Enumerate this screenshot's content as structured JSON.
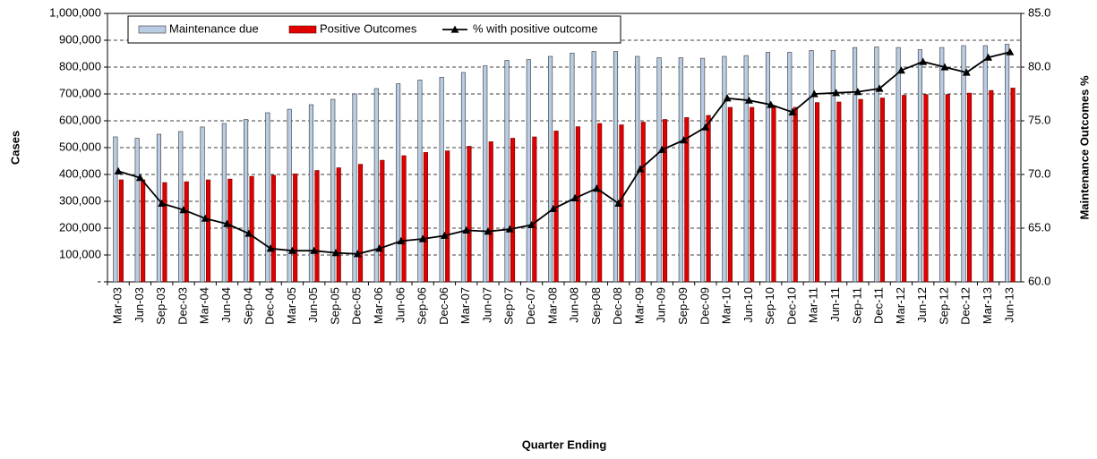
{
  "chart_data": {
    "type": "bar-line",
    "y_label": "Cases",
    "y2_label": "Maintenance Outcomes %",
    "x_label": "Quarter Ending",
    "categories": [
      "Mar-03",
      "Jun-03",
      "Sep-03",
      "Dec-03",
      "Mar-04",
      "Jun-04",
      "Sep-04",
      "Dec-04",
      "Mar-05",
      "Jun-05",
      "Sep-05",
      "Dec-05",
      "Mar-06",
      "Jun-06",
      "Sep-06",
      "Dec-06",
      "Mar-07",
      "Jun-07",
      "Sep-07",
      "Dec-07",
      "Mar-08",
      "Jun-08",
      "Sep-08",
      "Dec-08",
      "Mar-09",
      "Jun-09",
      "Sep-09",
      "Dec-09",
      "Mar-10",
      "Jun-10",
      "Sep-10",
      "Dec-10",
      "Mar-11",
      "Jun-11",
      "Sep-11",
      "Dec-11",
      "Mar-12",
      "Jun-12",
      "Sep-12",
      "Dec-12",
      "Mar-13",
      "Jun-13"
    ],
    "series": [
      {
        "name": "Maintenance due",
        "type": "bar",
        "color": "#b8cce4",
        "values": [
          540000,
          535000,
          550000,
          560000,
          577000,
          590000,
          605000,
          630000,
          643000,
          660000,
          680000,
          700000,
          720000,
          738000,
          752000,
          762000,
          780000,
          805000,
          825000,
          828000,
          840000,
          852000,
          858000,
          858000,
          840000,
          835000,
          835000,
          833000,
          840000,
          843000,
          855000,
          855000,
          862000,
          862000,
          873000,
          875000,
          873000,
          865000,
          873000,
          880000,
          880000,
          885000
        ]
      },
      {
        "name": "Positive Outcomes",
        "type": "bar",
        "color": "#e00000",
        "values": [
          380000,
          380000,
          370000,
          373000,
          380000,
          383000,
          393000,
          397000,
          402000,
          415000,
          425000,
          438000,
          453000,
          470000,
          482000,
          488000,
          505000,
          522000,
          535000,
          540000,
          562000,
          578000,
          590000,
          585000,
          595000,
          605000,
          612000,
          620000,
          650000,
          650000,
          652000,
          650000,
          668000,
          670000,
          680000,
          685000,
          695000,
          698000,
          698000,
          703000,
          713000,
          722000
        ]
      },
      {
        "name": "% with positive outcome",
        "type": "line",
        "axis": "y2",
        "color": "#000000",
        "values": [
          70.3,
          69.7,
          67.3,
          66.7,
          65.9,
          65.4,
          64.5,
          63.1,
          62.9,
          62.9,
          62.7,
          62.6,
          63.1,
          63.8,
          64.0,
          64.3,
          64.8,
          64.7,
          64.9,
          65.3,
          66.8,
          67.8,
          68.7,
          67.3,
          70.5,
          72.3,
          73.2,
          74.4,
          77.1,
          76.9,
          76.5,
          75.8,
          77.5,
          77.6,
          77.7,
          78.0,
          79.7,
          80.5,
          80.0,
          79.5,
          80.9,
          81.4
        ]
      }
    ],
    "ylim": [
      0,
      1000000
    ],
    "yticks": [
      {
        "value": 0,
        "label": "-"
      },
      {
        "value": 100000,
        "label": "100,000"
      },
      {
        "value": 200000,
        "label": "200,000"
      },
      {
        "value": 300000,
        "label": "300,000"
      },
      {
        "value": 400000,
        "label": "400,000"
      },
      {
        "value": 500000,
        "label": "500,000"
      },
      {
        "value": 600000,
        "label": "600,000"
      },
      {
        "value": 700000,
        "label": "700,000"
      },
      {
        "value": 800000,
        "label": "800,000"
      },
      {
        "value": 900000,
        "label": "900,000"
      },
      {
        "value": 1000000,
        "label": "1,000,000"
      }
    ],
    "y2lim": [
      60,
      85
    ],
    "y2ticks": [
      {
        "value": 60,
        "label": "60.0"
      },
      {
        "value": 65,
        "label": "65.0"
      },
      {
        "value": 70,
        "label": "70.0"
      },
      {
        "value": 75,
        "label": "75.0"
      },
      {
        "value": 80,
        "label": "80.0"
      },
      {
        "value": 85,
        "label": "85.0"
      }
    ],
    "grid": true
  }
}
